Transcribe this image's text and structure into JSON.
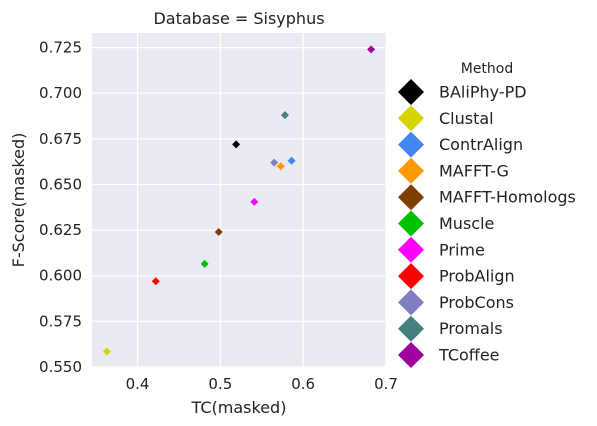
{
  "chart_data": {
    "type": "scatter",
    "title": "Database = Sisyphus",
    "xlabel": "TC(masked)",
    "ylabel": "F-Score(masked)",
    "xlim": [
      0.345,
      0.7
    ],
    "ylim": [
      0.55,
      0.733
    ],
    "xticks": [
      0.4,
      0.5,
      0.6,
      0.7
    ],
    "xtick_labels": [
      "0.4",
      "0.5",
      "0.6",
      "0.7"
    ],
    "yticks": [
      0.55,
      0.575,
      0.6,
      0.625,
      0.65,
      0.675,
      0.7,
      0.725
    ],
    "ytick_labels": [
      "0.550",
      "0.575",
      "0.600",
      "0.625",
      "0.650",
      "0.675",
      "0.700",
      "0.725"
    ],
    "grid": true,
    "legend_title": "Method",
    "legend_position": "right",
    "marker": "diamond",
    "series": [
      {
        "name": "BAliPhy-PD",
        "color": "#000000",
        "x": 0.519,
        "y": 0.672
      },
      {
        "name": "Clustal",
        "color": "#d4d400",
        "x": 0.363,
        "y": 0.5585
      },
      {
        "name": "ContrAlign",
        "color": "#4286f4",
        "x": 0.586,
        "y": 0.663
      },
      {
        "name": "MAFFT-G",
        "color": "#ff9900",
        "x": 0.573,
        "y": 0.66
      },
      {
        "name": "MAFFT-Homologs",
        "color": "#7f3f00",
        "x": 0.498,
        "y": 0.624
      },
      {
        "name": "Muscle",
        "color": "#00c200",
        "x": 0.481,
        "y": 0.6065
      },
      {
        "name": "Prime",
        "color": "#ff00ff",
        "x": 0.541,
        "y": 0.6405
      },
      {
        "name": "ProbAlign",
        "color": "#ff0000",
        "x": 0.422,
        "y": 0.597
      },
      {
        "name": "ProbCons",
        "color": "#8080c0",
        "x": 0.565,
        "y": 0.662
      },
      {
        "name": "Promals",
        "color": "#458080",
        "x": 0.578,
        "y": 0.688
      },
      {
        "name": "TCoffee",
        "color": "#a000a0",
        "x": 0.682,
        "y": 0.724
      }
    ]
  }
}
